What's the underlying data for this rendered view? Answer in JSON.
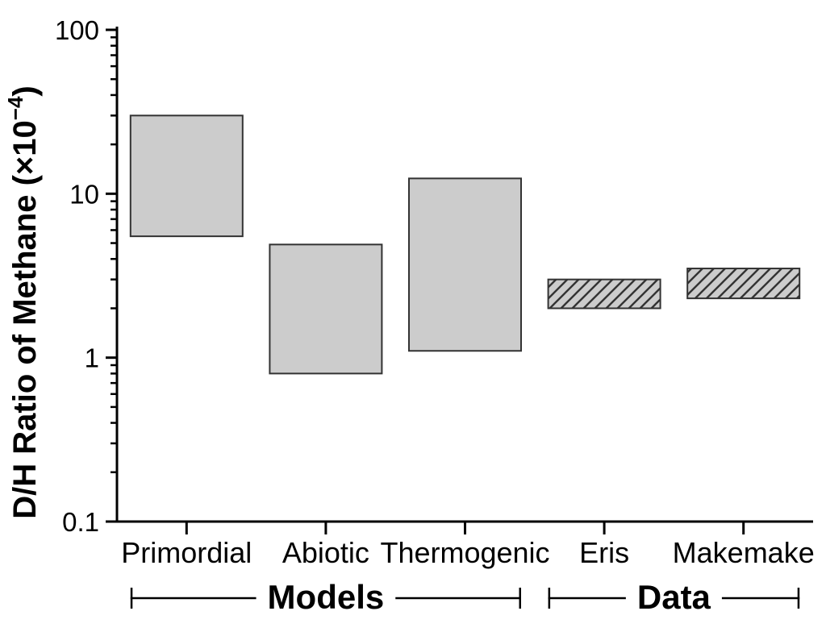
{
  "chart_data": {
    "type": "bar",
    "variant": "floating-range-box",
    "title": "",
    "xlabel": "",
    "ylabel": "D/H Ratio of Methane (×10⁻⁴)",
    "ylabel_parts": {
      "main": "D/H Ratio of Methane (×10",
      "superscript": "−4",
      "end": ")"
    },
    "yscale": "log",
    "ylim": [
      0.1,
      100
    ],
    "yticks": [
      {
        "value": 0.1,
        "label": "0.1"
      },
      {
        "value": 1,
        "label": "1"
      },
      {
        "value": 10,
        "label": "10"
      },
      {
        "value": 100,
        "label": "100"
      }
    ],
    "minor_tick_decades": [
      0.1,
      1,
      10
    ],
    "grid": false,
    "legend": null,
    "categories": [
      "Primordial",
      "Abiotic",
      "Thermogenic",
      "Eris",
      "Makemake"
    ],
    "bars": [
      {
        "category": "Primordial",
        "low": 5.5,
        "high": 30,
        "style": "solid"
      },
      {
        "category": "Abiotic",
        "low": 0.8,
        "high": 4.9,
        "style": "solid"
      },
      {
        "category": "Thermogenic",
        "low": 1.1,
        "high": 12.4,
        "style": "solid"
      },
      {
        "category": "Eris",
        "low": 2.0,
        "high": 3.0,
        "style": "hatched"
      },
      {
        "category": "Makemake",
        "low": 2.3,
        "high": 3.5,
        "style": "hatched"
      }
    ],
    "groups": [
      {
        "label": "Models",
        "from_category": "Primordial",
        "to_category": "Thermogenic"
      },
      {
        "label": "Data",
        "from_category": "Eris",
        "to_category": "Makemake"
      }
    ],
    "colors": {
      "background": "#ffffff",
      "box_fill": "#cccccc",
      "box_edge": "#333333",
      "hatch_line": "#333333",
      "axis": "#000000",
      "text": "#000000"
    }
  }
}
